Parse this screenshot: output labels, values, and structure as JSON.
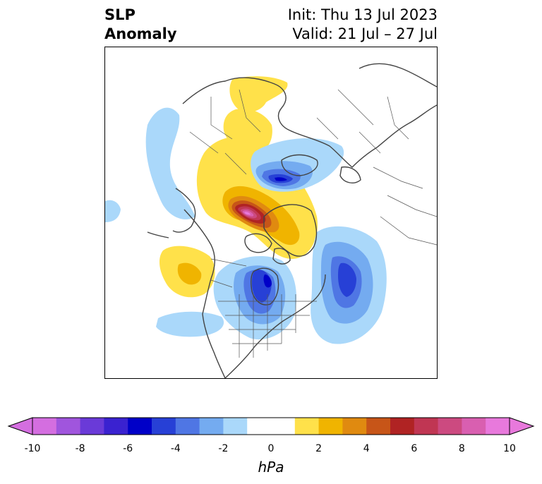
{
  "title": {
    "variable_line1": "SLP",
    "variable_line2": "Anomaly",
    "init": "Init: Thu 13 Jul 2023",
    "valid": "Valid: 21 Jul – 27 Jul"
  },
  "colorbar": {
    "unit": "hPa",
    "tick_labels": [
      "-10",
      "-8",
      "-6",
      "-4",
      "-2",
      "0",
      "2",
      "4",
      "6",
      "8",
      "10"
    ],
    "bins": [
      {
        "from": -10,
        "to": -9,
        "color": "#d46ee0"
      },
      {
        "from": -9,
        "to": -8,
        "color": "#a055dd"
      },
      {
        "from": -8,
        "to": -7,
        "color": "#6a3ad8"
      },
      {
        "from": -7,
        "to": -6,
        "color": "#3a22d0"
      },
      {
        "from": -6,
        "to": -5,
        "color": "#0000c8"
      },
      {
        "from": -5,
        "to": -4,
        "color": "#2740d6"
      },
      {
        "from": -4,
        "to": -3,
        "color": "#4f76e4"
      },
      {
        "from": -3,
        "to": -2,
        "color": "#74abf0"
      },
      {
        "from": -2,
        "to": -1,
        "color": "#aad8fa"
      },
      {
        "from": -1,
        "to": 1,
        "color": "#ffffff"
      },
      {
        "from": 1,
        "to": 2,
        "color": "#ffe14a"
      },
      {
        "from": 2,
        "to": 3,
        "color": "#f0b400"
      },
      {
        "from": 3,
        "to": 4,
        "color": "#e08a10"
      },
      {
        "from": 4,
        "to": 5,
        "color": "#c75518"
      },
      {
        "from": 5,
        "to": 6,
        "color": "#b02323"
      },
      {
        "from": 6,
        "to": 7,
        "color": "#c03653"
      },
      {
        "from": 7,
        "to": 8,
        "color": "#cc4a80"
      },
      {
        "from": 8,
        "to": 9,
        "color": "#d95fb0"
      },
      {
        "from": 9,
        "to": 10,
        "color": "#e879dc"
      }
    ],
    "extend_low_color": "#d46ee0",
    "extend_high_color": "#e879dc"
  },
  "map": {
    "projection": "polar stereographic, North America / Arctic",
    "features": [
      {
        "name": "Yellow positive anomaly over northern Siberia",
        "sign": "positive",
        "peak_hPa": 2
      },
      {
        "name": "Blue negative anomaly over Kara/Laptev Sea",
        "sign": "negative",
        "peak_hPa": -5
      },
      {
        "name": "Strong positive anomaly over Beaufort Sea / Alaska Arctic",
        "sign": "positive",
        "peak_hPa": 9
      },
      {
        "name": "Positive anomaly over Gulf of Alaska / NE Pacific",
        "sign": "positive",
        "peak_hPa": 3
      },
      {
        "name": "Negative anomaly over Hudson Bay / eastern Canada",
        "sign": "negative",
        "peak_hPa": -6
      },
      {
        "name": "Negative anomaly over North Atlantic",
        "sign": "negative",
        "peak_hPa": -5
      }
    ]
  }
}
